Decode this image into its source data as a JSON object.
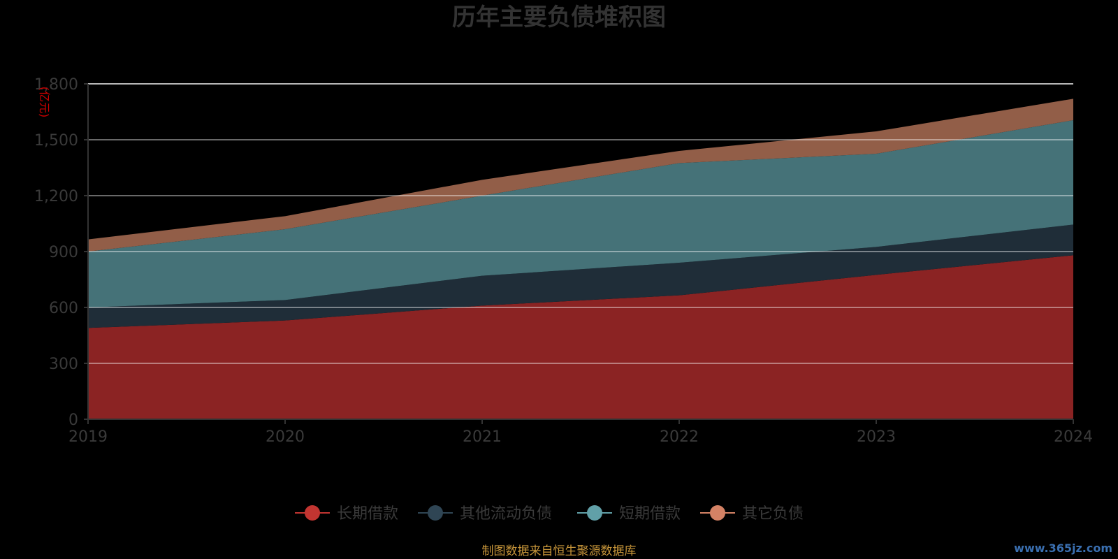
{
  "chart_data": {
    "type": "area",
    "stacked": true,
    "title": "历年主要负债堆积图",
    "unit_label": "(亿元)",
    "x": [
      "2019",
      "2020",
      "2021",
      "2022",
      "2023",
      "2024"
    ],
    "ylim": [
      0,
      1800
    ],
    "yticks": [
      "0",
      "300",
      "600",
      "900",
      "1,200",
      "1,500",
      "1,800"
    ],
    "ytick_values": [
      0,
      300,
      600,
      900,
      1200,
      1500,
      1800
    ],
    "grid": true,
    "legend_position": "bottom",
    "series": [
      {
        "name": "长期借款",
        "values": [
          490,
          530,
          610,
          665,
          775,
          880
        ],
        "color": "#8b2323",
        "legend_color": "#c23531"
      },
      {
        "name": "其他流动负债",
        "values": [
          110,
          110,
          160,
          175,
          150,
          165
        ],
        "color": "#1f2d38",
        "legend_color": "#2f4554"
      },
      {
        "name": "短期借款",
        "values": [
          300,
          380,
          430,
          535,
          500,
          560
        ],
        "color": "#457278",
        "legend_color": "#61a0a8"
      },
      {
        "name": "其它负债",
        "values": [
          65,
          70,
          85,
          65,
          120,
          115
        ],
        "color": "#925e48",
        "legend_color": "#d48265"
      }
    ],
    "source": "制图数据来自恒生聚源数据库",
    "watermark": "www.365jz.com"
  }
}
